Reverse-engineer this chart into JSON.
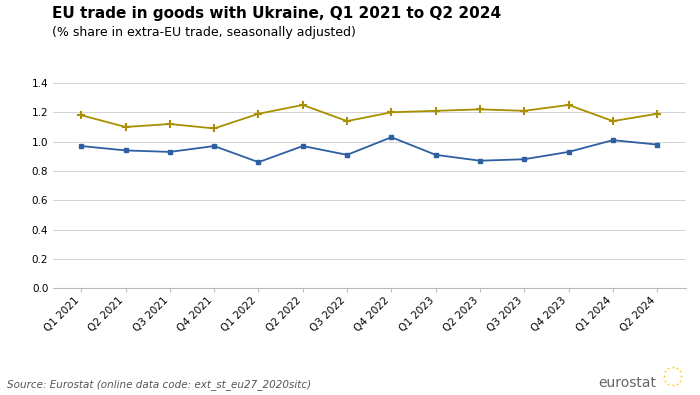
{
  "title": "EU trade in goods with Ukraine, Q1 2021 to Q2 2024",
  "subtitle": "(% share in extra-EU trade, seasonally adjusted)",
  "source": "Source: Eurostat (online data code: ext_st_eu27_2020sitc)",
  "quarters": [
    "Q1 2021",
    "Q2 2021",
    "Q3 2021",
    "Q4 2021",
    "Q1 2022",
    "Q2 2022",
    "Q3 2022",
    "Q4 2022",
    "Q1 2023",
    "Q2 2023",
    "Q3 2023",
    "Q4 2023",
    "Q1 2024",
    "Q2 2024"
  ],
  "imports": [
    0.97,
    0.94,
    0.93,
    0.97,
    0.86,
    0.97,
    0.91,
    1.03,
    0.91,
    0.87,
    0.88,
    0.93,
    1.01,
    0.98
  ],
  "exports": [
    1.18,
    1.1,
    1.12,
    1.09,
    1.19,
    1.25,
    1.14,
    1.2,
    1.21,
    1.22,
    1.21,
    1.25,
    1.14,
    1.19
  ],
  "imports_color": "#2E5FA3",
  "exports_color": "#A89000",
  "ylim": [
    0.0,
    1.4
  ],
  "yticks": [
    0.0,
    0.2,
    0.4,
    0.6,
    0.8,
    1.0,
    1.2,
    1.4
  ],
  "bg_color": "#ffffff",
  "grid_color": "#cccccc",
  "title_fontsize": 11,
  "subtitle_fontsize": 9,
  "tick_fontsize": 7.5,
  "legend_fontsize": 8.5,
  "source_fontsize": 7.5,
  "eurostat_fontsize": 10,
  "flag_color": "#003399",
  "star_color": "#FFCC00"
}
